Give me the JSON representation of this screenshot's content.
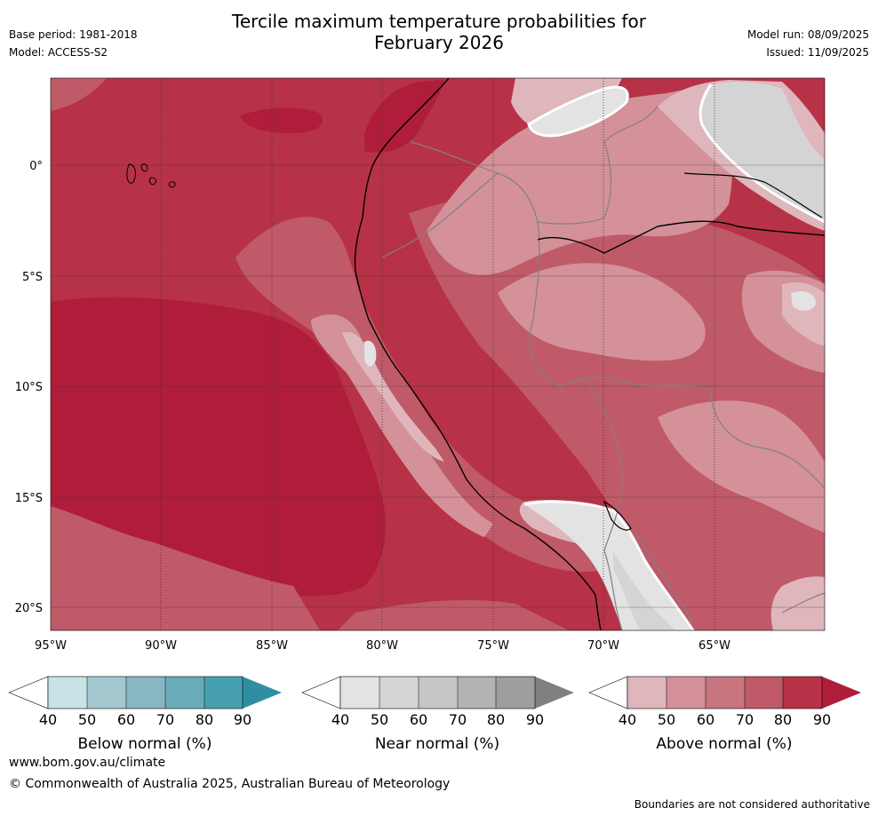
{
  "title": {
    "line1": "Tercile maximum temperature probabilities for",
    "line2": "February 2026"
  },
  "meta": {
    "base_period": "Base period: 1981-2018",
    "model": "Model: ACCESS-S2",
    "model_run": "Model run: 08/09/2025",
    "issued": "Issued: 11/09/2025"
  },
  "map": {
    "lon_labels": [
      "95°W",
      "90°W",
      "85°W",
      "80°W",
      "75°W",
      "70°W",
      "65°W"
    ],
    "lat_labels": [
      "0°",
      "5°S",
      "10°S",
      "15°S",
      "20°S"
    ],
    "colors": {
      "above": [
        "#dfb6bc",
        "#d4919a",
        "#c97580",
        "#c05a68",
        "#b73246",
        "#b01d3a"
      ],
      "near": [
        "#e3e3e3",
        "#d4d4d4",
        "#c6c6c6",
        "#b3b3b3",
        "#9e9e9e",
        "#808080"
      ],
      "below": [
        "#c8e2e6",
        "#a4c8cf",
        "#88b7c3",
        "#6aabb8",
        "#47a0b0",
        "#2e8fa3"
      ],
      "coastline": "#000000",
      "borders": "#808080",
      "gridlines": "#333333"
    }
  },
  "colorbars": [
    {
      "name": "below",
      "label": "Below normal (%)",
      "ticks": [
        "40",
        "50",
        "60",
        "70",
        "80",
        "90"
      ]
    },
    {
      "name": "near",
      "label": "Near normal (%)",
      "ticks": [
        "40",
        "50",
        "60",
        "70",
        "80",
        "90"
      ]
    },
    {
      "name": "above",
      "label": "Above normal (%)",
      "ticks": [
        "40",
        "50",
        "60",
        "70",
        "80",
        "90"
      ]
    }
  ],
  "footer": {
    "url": "www.bom.gov.au/climate",
    "copyright": "© Commonwealth of Australia 2025, Australian Bureau of Meteorology",
    "note": "Boundaries are not considered authoritative"
  }
}
